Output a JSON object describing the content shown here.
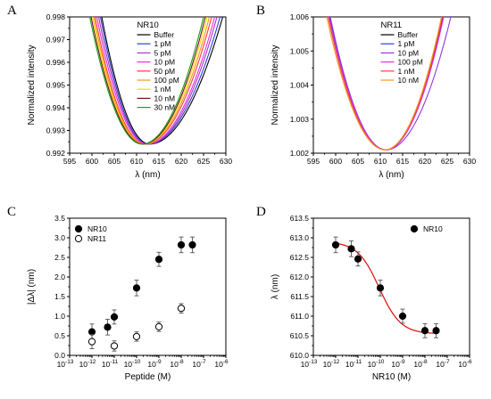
{
  "chart_data": [
    {
      "panel": "A",
      "type": "line",
      "title": "",
      "xlabel": "λ (nm)",
      "ylabel": "Normalized intensity",
      "xlim": [
        595,
        630
      ],
      "ylim": [
        0.992,
        0.998
      ],
      "xticks": [
        595,
        600,
        605,
        610,
        615,
        620,
        625,
        630
      ],
      "yticks": [
        0.992,
        0.993,
        0.994,
        0.995,
        0.996,
        0.997,
        0.998
      ],
      "yticklabels": [
        "0.992",
        "0.993",
        "0.994",
        "0.995",
        "0.996",
        "0.997",
        "0.998"
      ],
      "legend_title": "NR10",
      "legend_position": "top-center",
      "series": [
        {
          "name": "Buffer",
          "color": "#000000",
          "center": 612.9,
          "left_x": 602.2,
          "right_x": 629.3
        },
        {
          "name": "1 pM",
          "color": "#2e3dd6",
          "center": 612.6,
          "left_x": 601.9,
          "right_x": 628.7
        },
        {
          "name": "5 pM",
          "color": "#a63bc4",
          "center": 612.5,
          "left_x": 601.5,
          "right_x": 628.0
        },
        {
          "name": "10 pM",
          "color": "#e033e0",
          "center": 612.3,
          "left_x": 601.1,
          "right_x": 627.5
        },
        {
          "name": "50 pM",
          "color": "#ff3b3b",
          "center": 611.9,
          "left_x": 600.7,
          "right_x": 626.8
        },
        {
          "name": "100 pM",
          "color": "#f09a1e",
          "center": 611.7,
          "left_x": 600.4,
          "right_x": 626.3
        },
        {
          "name": "1 nM",
          "color": "#ffd800",
          "center": 611.5,
          "left_x": 600.1,
          "right_x": 625.8
        },
        {
          "name": "10 nM",
          "color": "#6b1426",
          "center": 611.4,
          "left_x": 599.8,
          "right_x": 625.4
        },
        {
          "name": "30 nM",
          "color": "#1f9e1f",
          "center": 611.2,
          "left_x": 599.5,
          "right_x": 625.0
        }
      ],
      "min_value": 0.9924
    },
    {
      "panel": "B",
      "type": "line",
      "title": "",
      "xlabel": "λ (nm)",
      "ylabel": "Normalized intensity",
      "xlim": [
        595,
        630
      ],
      "ylim": [
        1.002,
        1.006
      ],
      "xticks": [
        595,
        600,
        605,
        610,
        615,
        620,
        625,
        630
      ],
      "yticks": [
        1.002,
        1.003,
        1.004,
        1.005,
        1.006
      ],
      "yticklabels": [
        "1.002",
        "1.003",
        "1.004",
        "1.005",
        "1.006"
      ],
      "legend_title": "NR11",
      "legend_position": "top-center",
      "series": [
        {
          "name": "Buffer",
          "color": "#000000",
          "center": 611.2,
          "left_x": 598.6,
          "right_x": 624.0
        },
        {
          "name": "1 pM",
          "color": "#2e3dd6",
          "center": 611.2,
          "left_x": 598.6,
          "right_x": 624.1
        },
        {
          "name": "10 pM",
          "color": "#8e3be0",
          "center": 611.3,
          "left_x": 598.8,
          "right_x": 625.8
        },
        {
          "name": "100 pM",
          "color": "#e033e0",
          "center": 611.2,
          "left_x": 598.5,
          "right_x": 624.2
        },
        {
          "name": "1 nM",
          "color": "#ff3b3b",
          "center": 611.1,
          "left_x": 598.3,
          "right_x": 623.9
        },
        {
          "name": "10 nM",
          "color": "#f09a1e",
          "center": 611.0,
          "left_x": 598.0,
          "right_x": 623.7
        }
      ],
      "min_value": 1.0021
    },
    {
      "panel": "C",
      "type": "scatter",
      "title": "",
      "xlabel": "Peptide (M)",
      "ylabel": "|Δλ| (nm)",
      "xscale": "log",
      "xlim_exp": [
        -13,
        -6
      ],
      "ylim": [
        0,
        3.5
      ],
      "xtick_exps": [
        -13,
        -12,
        -11,
        -10,
        -9,
        -8,
        -7,
        -6
      ],
      "yticks": [
        0.0,
        0.5,
        1.0,
        1.5,
        2.0,
        2.5,
        3.0,
        3.5
      ],
      "yticklabels": [
        "0.0",
        "0.5",
        "1.0",
        "1.5",
        "2.0",
        "2.5",
        "3.0",
        "3.5"
      ],
      "legend_position": "top-left",
      "series": [
        {
          "name": "NR10",
          "marker": "filled-circle",
          "x_exp": [
            -12,
            -11.3,
            -11,
            -10,
            -9,
            -8,
            -7.5
          ],
          "y": [
            0.6,
            0.72,
            0.98,
            1.72,
            2.45,
            2.82,
            2.82
          ],
          "err": [
            0.2,
            0.2,
            0.18,
            0.2,
            0.18,
            0.2,
            0.2
          ]
        },
        {
          "name": "NR11",
          "marker": "open-circle",
          "x_exp": [
            -12,
            -11,
            -10,
            -9,
            -8
          ],
          "y": [
            0.35,
            0.24,
            0.48,
            0.73,
            1.2
          ],
          "err": [
            0.18,
            0.13,
            0.12,
            0.12,
            0.12
          ]
        }
      ]
    },
    {
      "panel": "D",
      "type": "scatter",
      "title": "",
      "xlabel": "NR10 (M)",
      "ylabel": "λ (nm)",
      "xscale": "log",
      "xlim_exp": [
        -13,
        -6
      ],
      "ylim": [
        610.0,
        613.5
      ],
      "xtick_exps": [
        -13,
        -12,
        -11,
        -10,
        -9,
        -8,
        -7,
        -6
      ],
      "yticks": [
        610.0,
        610.5,
        611.0,
        611.5,
        612.0,
        612.5,
        613.0,
        613.5
      ],
      "yticklabels": [
        "610.0",
        "610.5",
        "611.0",
        "611.5",
        "612.0",
        "612.5",
        "613.0",
        "613.5"
      ],
      "legend_position": "top-right",
      "series": [
        {
          "name": "NR10",
          "marker": "filled-circle",
          "x_exp": [
            -12,
            -11.3,
            -11,
            -10,
            -9,
            -8,
            -7.5
          ],
          "y": [
            612.82,
            612.72,
            612.46,
            611.72,
            611.0,
            610.63,
            610.63
          ],
          "err": [
            0.2,
            0.2,
            0.18,
            0.2,
            0.18,
            0.18,
            0.18
          ]
        }
      ],
      "fit": {
        "color": "#e01b1b",
        "top": 612.9,
        "bottom": 610.55,
        "logEC50": -10.05,
        "hill": 0.9
      }
    }
  ]
}
